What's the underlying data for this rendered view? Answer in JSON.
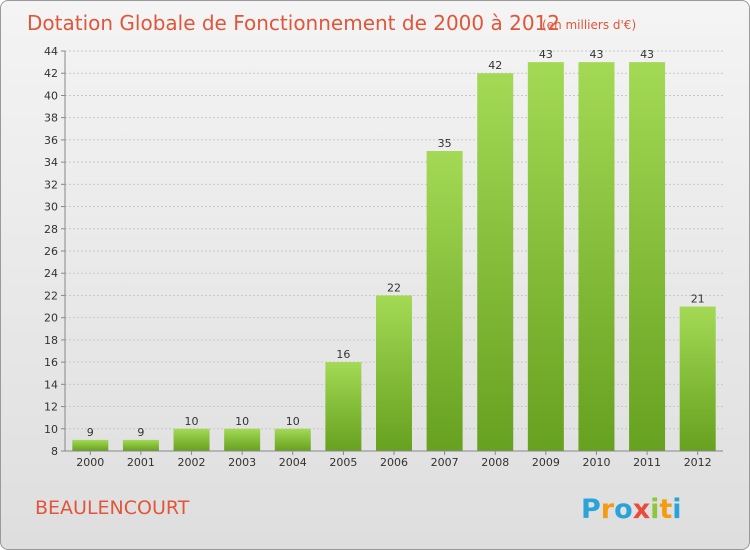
{
  "chart_data": {
    "type": "bar",
    "title": "Dotation Globale de Fonctionnement de 2000 à 2012",
    "subtitle": "(en milliers d'€)",
    "categories": [
      "2000",
      "2001",
      "2002",
      "2003",
      "2004",
      "2005",
      "2006",
      "2007",
      "2008",
      "2009",
      "2010",
      "2011",
      "2012"
    ],
    "values": [
      9,
      9,
      10,
      10,
      10,
      16,
      22,
      35,
      42,
      43,
      43,
      43,
      21
    ],
    "ylim": [
      8,
      44
    ],
    "yticks": [
      8,
      10,
      12,
      14,
      16,
      18,
      20,
      22,
      24,
      26,
      28,
      30,
      32,
      34,
      36,
      38,
      40,
      42,
      44
    ],
    "grid": true,
    "bar_color": "#7cc133",
    "bar_color_top": "#9fd64e"
  },
  "commune": "BEAULENCOURT",
  "brand": {
    "letters": [
      "P",
      "r",
      "o",
      "x",
      "i",
      "t",
      "i"
    ],
    "colors": [
      "#2aa3d9",
      "#f39c12",
      "#2aa3d9",
      "#e74c3c",
      "#8dc63f",
      "#f39c12",
      "#2aa3d9"
    ]
  },
  "text_color": "#e0563a"
}
